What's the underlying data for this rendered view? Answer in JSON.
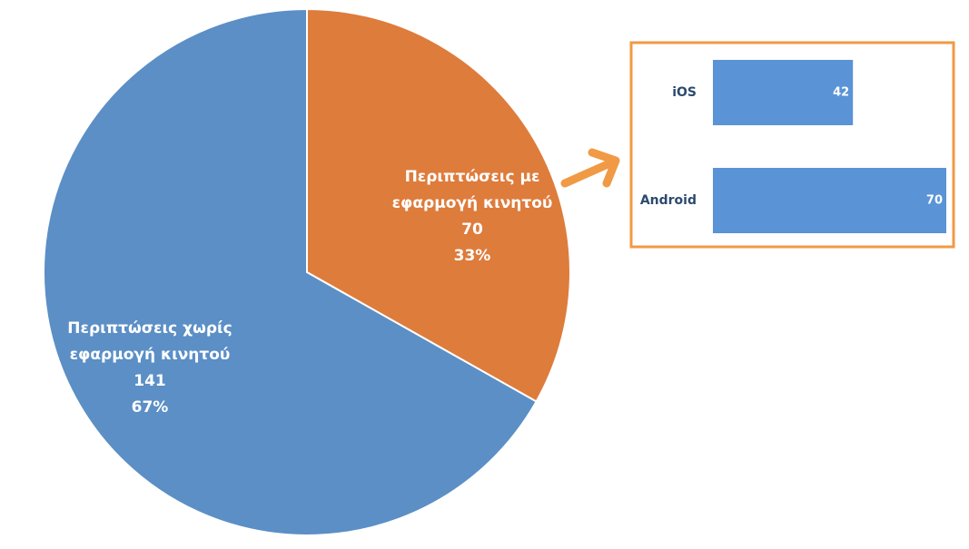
{
  "chart_data": [
    {
      "type": "pie",
      "categories": [
        "Περιπτώσεις με εφαρμογή κινητού",
        "Περιπτώσεις χωρίς εφαρμογή κινητού"
      ],
      "values": [
        70,
        141
      ],
      "percent_labels": [
        "33%",
        "67%"
      ],
      "colors": [
        "#de7c3c",
        "#5b8fc6"
      ]
    },
    {
      "type": "hbar",
      "categories": [
        "iOS",
        "Android"
      ],
      "values": [
        42,
        70
      ],
      "color": "#5a93d6"
    }
  ]
}
